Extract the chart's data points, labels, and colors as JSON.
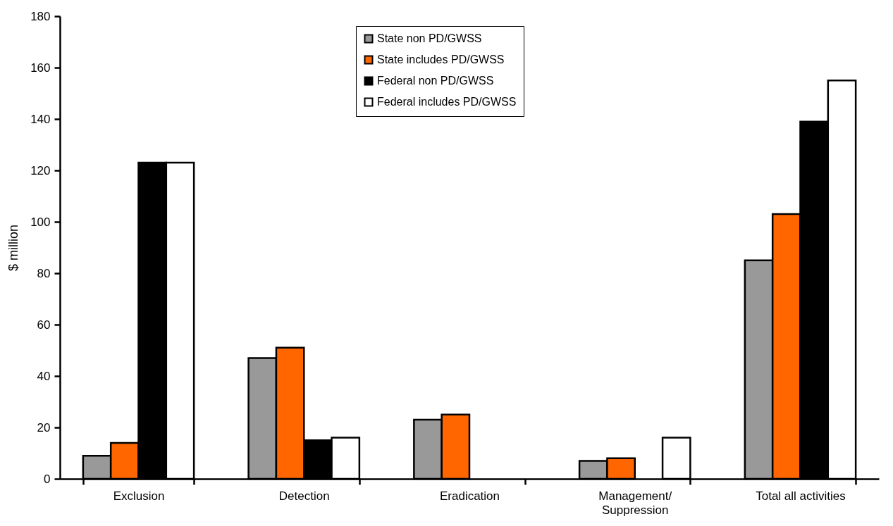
{
  "chart_data": {
    "type": "bar",
    "ylabel": "$ million",
    "categories": [
      "Exclusion",
      "Detection",
      "Eradication",
      "Management/\nSuppression",
      "Total all activities"
    ],
    "series": [
      {
        "name": "State  non PD/GWSS",
        "color": "#999999",
        "values": [
          9,
          47,
          23,
          7,
          85
        ]
      },
      {
        "name": "State  includes PD/GWSS",
        "color": "#ff6600",
        "values": [
          14,
          51,
          25,
          8,
          103
        ]
      },
      {
        "name": "Federal non PD/GWSS",
        "color": "#000000",
        "values": [
          123,
          15,
          null,
          null,
          139
        ]
      },
      {
        "name": "Federal includes PD/GWSS",
        "color": "#ffffff",
        "values": [
          123,
          16,
          null,
          16,
          155
        ]
      }
    ],
    "ylim": [
      0,
      180
    ],
    "yticks": [
      0,
      20,
      40,
      60,
      80,
      100,
      120,
      140,
      160,
      180
    ],
    "grid": false,
    "legend": "top"
  }
}
